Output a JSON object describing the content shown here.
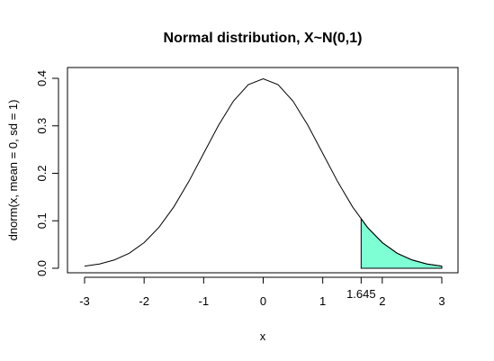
{
  "chart_data": {
    "type": "line",
    "title": "Normal distribution, X~N(0,1)",
    "xlabel": "x",
    "ylabel": "dnorm(x, mean = 0, sd = 1)",
    "xlim": [
      -3,
      3
    ],
    "ylim": [
      0,
      0.4
    ],
    "x_ticks": [
      -3,
      -2,
      -1,
      0,
      1,
      2,
      3
    ],
    "x_tick_labels": [
      "-3",
      "-2",
      "-1",
      "0",
      "1",
      "2",
      "3"
    ],
    "y_ticks": [
      0.0,
      0.1,
      0.2,
      0.3,
      0.4
    ],
    "y_tick_labels": [
      "0.0",
      "0.1",
      "0.2",
      "0.3",
      "0.4"
    ],
    "grid": false,
    "series": [
      {
        "x": [
          -3.0,
          -2.75,
          -2.5,
          -2.25,
          -2.0,
          -1.75,
          -1.5,
          -1.25,
          -1.0,
          -0.75,
          -0.5,
          -0.25,
          0.0,
          0.25,
          0.5,
          0.75,
          1.0,
          1.25,
          1.5,
          1.75,
          2.0,
          2.25,
          2.5,
          2.75,
          3.0
        ],
        "y": [
          0.0044,
          0.0091,
          0.0175,
          0.0317,
          0.054,
          0.0863,
          0.1295,
          0.1826,
          0.242,
          0.3011,
          0.3521,
          0.3867,
          0.3989,
          0.3867,
          0.3521,
          0.3011,
          0.242,
          0.1826,
          0.1295,
          0.0863,
          0.054,
          0.0317,
          0.0175,
          0.0091,
          0.0044
        ],
        "color": "#000000"
      }
    ],
    "shaded_region": {
      "from": 1.645,
      "to": 3,
      "fill": "#7FFFD4"
    },
    "annotation": {
      "x": 1.645,
      "label": "1.645"
    }
  }
}
